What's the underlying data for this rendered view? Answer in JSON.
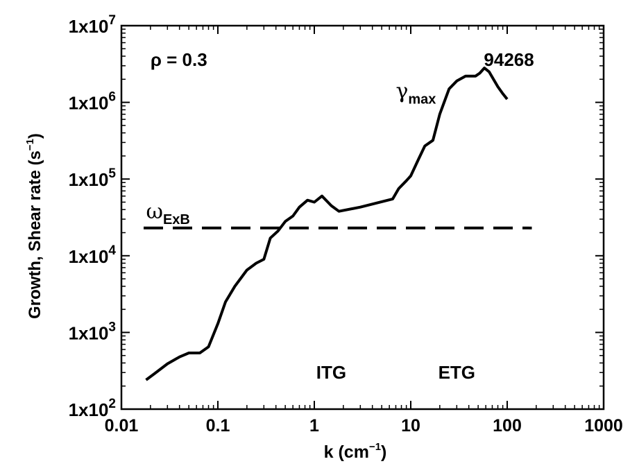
{
  "chart_data": {
    "type": "line",
    "title": "",
    "xlabel": "k (cm",
    "xlabel_sup": "−1",
    "xlabel_close": ")",
    "ylabel": "Growth, Shear rate (s",
    "ylabel_sup": "−1",
    "ylabel_close": ")",
    "xscale": "log",
    "yscale": "log",
    "xlim": [
      0.01,
      1000
    ],
    "ylim": [
      100,
      10000000
    ],
    "x_ticks": [
      {
        "value": 0.01,
        "label": "0.01"
      },
      {
        "value": 0.1,
        "label": "0.1"
      },
      {
        "value": 1,
        "label": "1"
      },
      {
        "value": 10,
        "label": "10"
      },
      {
        "value": 100,
        "label": "100"
      },
      {
        "value": 1000,
        "label": "1000"
      }
    ],
    "y_ticks": [
      {
        "value": 100,
        "base": "1x10",
        "exp": "2"
      },
      {
        "value": 1000,
        "base": "1x10",
        "exp": "3"
      },
      {
        "value": 10000,
        "base": "1x10",
        "exp": "4"
      },
      {
        "value": 100000,
        "base": "1x10",
        "exp": "5"
      },
      {
        "value": 1000000,
        "base": "1x10",
        "exp": "6"
      },
      {
        "value": 10000000,
        "base": "1x10",
        "exp": "7"
      }
    ],
    "grid": false,
    "series": [
      {
        "name_main": "γ",
        "name_sub": "max",
        "style": "solid",
        "color": "#000000",
        "x": [
          0.018,
          0.022,
          0.03,
          0.04,
          0.05,
          0.065,
          0.08,
          0.1,
          0.12,
          0.15,
          0.2,
          0.25,
          0.3,
          0.35,
          0.42,
          0.5,
          0.6,
          0.7,
          0.85,
          1.0,
          1.2,
          1.5,
          1.8,
          3.0,
          6.5,
          7.5,
          9.0,
          10.0,
          12.0,
          14.0,
          17.0,
          20.0,
          25.0,
          30.0,
          37.0,
          42.0,
          47.0,
          52.0,
          58.0,
          65.0,
          72.0,
          80.0,
          90.0,
          100.0
        ],
        "y": [
          240,
          290,
          390,
          480,
          540,
          540,
          650,
          1300,
          2500,
          4000,
          6500,
          8000,
          9000,
          17000,
          21000,
          28000,
          33000,
          43000,
          53000,
          50000,
          60000,
          45000,
          38000,
          43000,
          55000,
          75000,
          95000,
          110000,
          180000,
          270000,
          320000,
          700000,
          1500000,
          1900000,
          2200000,
          2200000,
          2200000,
          2400000,
          2800000,
          2500000,
          2000000,
          1600000,
          1300000,
          1100000
        ]
      },
      {
        "name_main": "ω",
        "name_sub": "ExB",
        "style": "dashed",
        "color": "#000000",
        "x": [
          0.017,
          180
        ],
        "y": [
          23000,
          23000
        ]
      }
    ],
    "annotations": [
      {
        "id": "rho",
        "text": "ρ = 0.3",
        "x": 0.02,
        "y": 3000000
      },
      {
        "id": "shot",
        "text": "94268",
        "x": 190,
        "y": 3000000
      },
      {
        "id": "itg",
        "text": "ITG",
        "x": 1.5,
        "y": 250
      },
      {
        "id": "etg",
        "text": "ETG",
        "x": 30,
        "y": 250
      }
    ],
    "series_label_positions": [
      {
        "series": 0,
        "x": 7.0,
        "y": 1000000
      },
      {
        "series": 1,
        "x": 0.018,
        "y": 27000
      }
    ]
  }
}
